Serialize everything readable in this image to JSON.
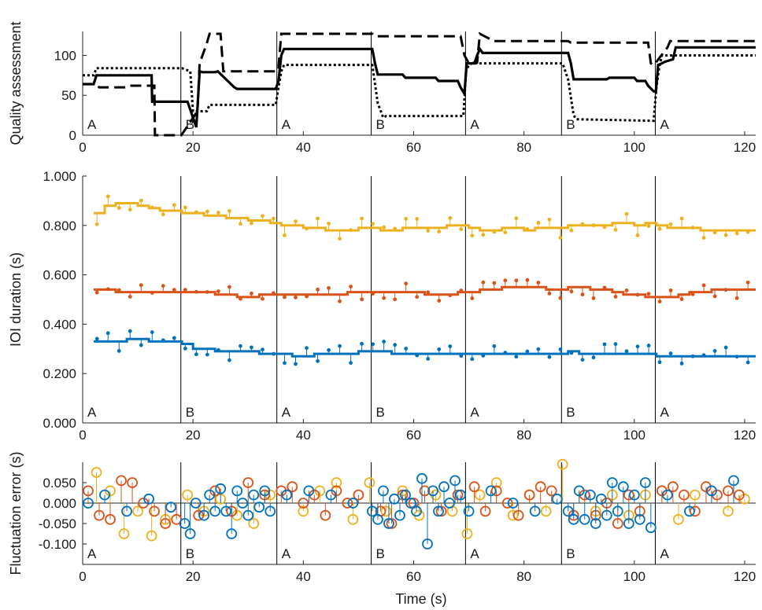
{
  "figure": {
    "xlabel": "Time (s)"
  },
  "chart_data": [
    {
      "type": "line",
      "ylabel": "Quality assessment",
      "xlim": [
        0,
        122
      ],
      "ylim": [
        0,
        130
      ],
      "xticks": [
        "0",
        "20",
        "40",
        "60",
        "80",
        "100",
        "120"
      ],
      "yticks": [
        "0",
        "50",
        "100"
      ],
      "ytick_values": [
        0,
        50,
        100
      ],
      "boundaries": [
        17.8,
        35.2,
        52.3,
        69.4,
        86.8,
        103.8
      ],
      "segment_labels": [
        "A",
        "B",
        "A",
        "B",
        "A",
        "B",
        "A"
      ],
      "series": [
        {
          "style": "solid",
          "color": "#000000",
          "x": [
            0,
            2,
            2.5,
            12.5,
            12.6,
            18,
            19,
            20.6,
            21.2,
            21.7,
            24,
            24.5,
            27.5,
            28,
            35,
            35.5,
            36,
            36.5,
            52.5,
            53,
            53.5,
            58,
            58.5,
            64,
            64.5,
            68,
            68.5,
            69.2,
            69.6,
            71,
            71.5,
            72,
            72.5,
            88,
            88.5,
            89,
            95,
            95.5,
            100,
            100.5,
            102,
            102.5,
            103.5,
            103.9,
            104.3,
            105,
            105.5,
            107,
            107.5,
            122
          ],
          "y": [
            64,
            64,
            75,
            75,
            42,
            42,
            42,
            10,
            80,
            79,
            79,
            80,
            60,
            58,
            58,
            68,
            100,
            108,
            108,
            90,
            76,
            76,
            72,
            72,
            68,
            68,
            60,
            52,
            90,
            90,
            100,
            108,
            103,
            103,
            90,
            70,
            70,
            72,
            72,
            68,
            68,
            62,
            55,
            55,
            88,
            90,
            92,
            95,
            110,
            110
          ]
        },
        {
          "style": "dashed",
          "color": "#000000",
          "x": [
            0,
            2.5,
            3,
            8,
            8.5,
            13,
            13.1,
            17.5,
            17.9,
            20.8,
            21.2,
            22.5,
            23,
            25,
            25.5,
            35,
            35.2,
            35.5,
            36,
            52.5,
            53,
            68.5,
            69.2,
            70,
            70.2,
            71.5,
            72,
            74,
            74.5,
            88,
            88.5,
            102.5,
            103,
            103.5,
            104,
            106,
            106.5,
            122
          ],
          "y": [
            64,
            64,
            60,
            60,
            62,
            62,
            0,
            0,
            0,
            30,
            90,
            115,
            127,
            127,
            80,
            80,
            85,
            85,
            127,
            127,
            124,
            124,
            100,
            90,
            91,
            91,
            127,
            120,
            118,
            118,
            116,
            116,
            90,
            88,
            92,
            110,
            118,
            118
          ]
        },
        {
          "style": "dotted",
          "color": "#000000",
          "x": [
            0,
            2,
            2.5,
            17.8,
            18,
            19.5,
            20,
            22.5,
            23,
            35,
            35.5,
            36,
            36.5,
            52.5,
            53.5,
            54.5,
            55,
            69,
            69.5,
            70,
            70.5,
            87,
            88,
            89,
            89.5,
            103.5,
            104,
            104.5,
            105,
            122
          ],
          "y": [
            75,
            75,
            84,
            84,
            84,
            80,
            30,
            30,
            38,
            38,
            60,
            80,
            88,
            88,
            40,
            22,
            24,
            24,
            80,
            88,
            90,
            90,
            70,
            25,
            20,
            18,
            60,
            85,
            100,
            100
          ]
        }
      ]
    },
    {
      "type": "line",
      "ylabel": "IOI duration (s)",
      "xlim": [
        0,
        122
      ],
      "ylim": [
        0,
        1
      ],
      "xticks": [
        "0",
        "20",
        "40",
        "60",
        "80",
        "100",
        "120"
      ],
      "yticks": [
        "0.000",
        "0.200",
        "0.400",
        "0.600",
        "0.800",
        "1.000"
      ],
      "ytick_values": [
        0,
        0.2,
        0.4,
        0.6,
        0.8,
        1.0
      ],
      "boundaries": [
        17.8,
        35.2,
        52.3,
        69.4,
        86.8,
        103.8
      ],
      "segment_labels": [
        "A",
        "B",
        "A",
        "B",
        "A",
        "B",
        "A"
      ],
      "series": [
        {
          "color": "#EDB120",
          "base": 0.8,
          "noise": 0.045,
          "x": [
            2,
            4,
            6,
            8,
            10,
            12,
            14,
            16,
            18,
            20,
            22,
            24,
            26,
            28,
            30,
            32,
            34,
            36,
            38,
            40,
            42,
            44,
            46,
            48,
            50,
            52,
            54,
            56,
            58,
            60,
            62,
            64,
            66,
            68,
            70,
            72,
            74,
            76,
            78,
            80,
            82,
            84,
            86,
            88,
            90,
            92,
            94,
            96,
            98,
            100,
            102,
            104,
            106,
            108,
            110,
            112,
            114,
            116,
            118,
            120
          ],
          "y": [
            0.85,
            0.88,
            0.89,
            0.89,
            0.88,
            0.87,
            0.86,
            0.86,
            0.85,
            0.85,
            0.84,
            0.84,
            0.83,
            0.83,
            0.82,
            0.82,
            0.81,
            0.8,
            0.8,
            0.79,
            0.79,
            0.78,
            0.78,
            0.78,
            0.79,
            0.79,
            0.78,
            0.78,
            0.79,
            0.79,
            0.79,
            0.79,
            0.8,
            0.8,
            0.79,
            0.78,
            0.78,
            0.79,
            0.79,
            0.78,
            0.79,
            0.79,
            0.79,
            0.8,
            0.8,
            0.8,
            0.8,
            0.81,
            0.81,
            0.8,
            0.81,
            0.8,
            0.79,
            0.79,
            0.79,
            0.78,
            0.78,
            0.78,
            0.78,
            0.78
          ]
        },
        {
          "color": "#D95319",
          "base": 0.53,
          "noise": 0.035,
          "x": [
            2,
            4,
            6,
            8,
            10,
            12,
            14,
            16,
            18,
            20,
            22,
            24,
            26,
            28,
            30,
            32,
            34,
            36,
            38,
            40,
            42,
            44,
            46,
            48,
            50,
            52,
            54,
            56,
            58,
            60,
            62,
            64,
            66,
            68,
            70,
            72,
            74,
            76,
            78,
            80,
            82,
            84,
            86,
            88,
            90,
            92,
            94,
            96,
            98,
            100,
            102,
            104,
            106,
            108,
            110,
            112,
            114,
            116,
            118,
            120
          ],
          "y": [
            0.54,
            0.54,
            0.53,
            0.53,
            0.53,
            0.53,
            0.53,
            0.53,
            0.53,
            0.53,
            0.53,
            0.52,
            0.52,
            0.51,
            0.51,
            0.52,
            0.52,
            0.52,
            0.52,
            0.52,
            0.52,
            0.52,
            0.52,
            0.53,
            0.53,
            0.53,
            0.53,
            0.53,
            0.53,
            0.53,
            0.52,
            0.52,
            0.52,
            0.53,
            0.53,
            0.54,
            0.54,
            0.55,
            0.55,
            0.55,
            0.55,
            0.54,
            0.54,
            0.55,
            0.55,
            0.54,
            0.54,
            0.53,
            0.52,
            0.52,
            0.51,
            0.51,
            0.51,
            0.52,
            0.53,
            0.53,
            0.54,
            0.54,
            0.54,
            0.54
          ]
        },
        {
          "color": "#0072BD",
          "base": 0.29,
          "noise": 0.04,
          "x": [
            2,
            4,
            6,
            8,
            10,
            12,
            14,
            16,
            18,
            20,
            22,
            24,
            26,
            28,
            30,
            32,
            34,
            36,
            38,
            40,
            42,
            44,
            46,
            48,
            50,
            52,
            54,
            56,
            58,
            60,
            62,
            64,
            66,
            68,
            70,
            72,
            74,
            76,
            78,
            80,
            82,
            84,
            86,
            88,
            90,
            92,
            94,
            96,
            98,
            100,
            102,
            104,
            106,
            108,
            110,
            112,
            114,
            116,
            118,
            120
          ],
          "y": [
            0.33,
            0.33,
            0.33,
            0.34,
            0.34,
            0.33,
            0.33,
            0.33,
            0.32,
            0.3,
            0.3,
            0.29,
            0.29,
            0.29,
            0.29,
            0.28,
            0.28,
            0.28,
            0.27,
            0.27,
            0.28,
            0.28,
            0.28,
            0.28,
            0.29,
            0.29,
            0.29,
            0.28,
            0.28,
            0.28,
            0.28,
            0.28,
            0.28,
            0.28,
            0.28,
            0.28,
            0.28,
            0.28,
            0.28,
            0.28,
            0.28,
            0.28,
            0.28,
            0.29,
            0.28,
            0.28,
            0.28,
            0.28,
            0.28,
            0.28,
            0.28,
            0.27,
            0.27,
            0.27,
            0.27,
            0.27,
            0.27,
            0.27,
            0.27,
            0.27
          ]
        }
      ]
    },
    {
      "type": "scatter",
      "ylabel": "Fluctuation error (s)",
      "xlim": [
        0,
        122
      ],
      "ylim": [
        -0.15,
        0.1
      ],
      "xticks": [
        "0",
        "20",
        "40",
        "60",
        "80",
        "100",
        "120"
      ],
      "yticks": [
        "-0.100",
        "-0.050",
        "0.000",
        "0.050"
      ],
      "ytick_values": [
        -0.1,
        -0.05,
        0,
        0.05
      ],
      "boundaries": [
        17.8,
        35.2,
        52.3,
        69.4,
        86.8,
        103.8
      ],
      "segment_labels": [
        "A",
        "B",
        "A",
        "B",
        "A",
        "B",
        "A"
      ],
      "series": [
        {
          "color": "#EDB120",
          "x": [
            2.5,
            5,
            7.5,
            10,
            12.5,
            15,
            19,
            22,
            25,
            28,
            31,
            34,
            37,
            40,
            43,
            46,
            49,
            52,
            55,
            58,
            61,
            64,
            67,
            69.7,
            72,
            75,
            78,
            81,
            84,
            87,
            90,
            93,
            96,
            99,
            102,
            105,
            108,
            111,
            114,
            117,
            120
          ],
          "y": [
            0.075,
            0.03,
            -0.075,
            -0.02,
            -0.08,
            -0.04,
            0.02,
            -0.02,
            0.01,
            -0.03,
            -0.05,
            0.02,
            0.02,
            -0.02,
            0.03,
            0.05,
            -0.04,
            0.05,
            -0.02,
            0.03,
            -0.03,
            0.02,
            -0.02,
            -0.075,
            0.02,
            0.05,
            -0.03,
            0.02,
            -0.02,
            0.095,
            0.03,
            -0.02,
            0.02,
            -0.03,
            0.02,
            0.03,
            -0.04,
            0.02,
            0.03,
            -0.02,
            0.01
          ]
        },
        {
          "color": "#D95319",
          "x": [
            1,
            3,
            5,
            7,
            9,
            11,
            13,
            15,
            17,
            21,
            24,
            27,
            30,
            33,
            36,
            38,
            40,
            42,
            44,
            46,
            48,
            50,
            54,
            56,
            58,
            60,
            62,
            65,
            68,
            71,
            73,
            75,
            77,
            79,
            81,
            83,
            85,
            89,
            91,
            93,
            95,
            97,
            99,
            101,
            105,
            107,
            109,
            111,
            113,
            115,
            117,
            119
          ],
          "y": [
            0.03,
            -0.03,
            -0.04,
            0.055,
            0.05,
            0.0,
            -0.02,
            -0.05,
            -0.04,
            -0.03,
            0.03,
            -0.02,
            0.05,
            0.02,
            0.03,
            0.04,
            0.0,
            0.02,
            -0.03,
            0.03,
            0.0,
            0.02,
            -0.02,
            -0.05,
            0.02,
            0.0,
            0.03,
            -0.02,
            0.02,
            0.04,
            -0.02,
            0.03,
            0.0,
            -0.03,
            0.02,
            0.04,
            0.03,
            -0.03,
            0.02,
            -0.03,
            0.0,
            -0.05,
            0.02,
            -0.02,
            0.03,
            0.04,
            0.02,
            -0.02,
            0.04,
            0.02,
            0.03,
            0.02
          ]
        },
        {
          "color": "#0072BD",
          "x": [
            1,
            4,
            8,
            12,
            16,
            18.5,
            19.5,
            20.5,
            22,
            23,
            24,
            25,
            26,
            27,
            28,
            29,
            30,
            31,
            32,
            33,
            34,
            37,
            41,
            45,
            49,
            52.5,
            53.5,
            54.5,
            55.5,
            56.5,
            57.5,
            58.5,
            59.5,
            60.5,
            61.5,
            62.5,
            63.5,
            64.5,
            65.5,
            66.5,
            67.5,
            68.5,
            70,
            74,
            78,
            82,
            86,
            88,
            89,
            90,
            91,
            92,
            93,
            94,
            95,
            96,
            97,
            98,
            99,
            100,
            101,
            102,
            103,
            106,
            110,
            114,
            118
          ],
          "y": [
            0.0,
            0.02,
            -0.02,
            0.01,
            -0.01,
            -0.05,
            -0.075,
            0.0,
            -0.03,
            0.02,
            -0.02,
            0.035,
            -0.02,
            -0.075,
            0.03,
            0.0,
            -0.03,
            0.02,
            -0.01,
            0.03,
            -0.02,
            0.02,
            0.03,
            0.02,
            0.0,
            -0.02,
            -0.04,
            0.03,
            -0.05,
            0.01,
            -0.03,
            0.02,
            0.0,
            -0.02,
            0.06,
            -0.1,
            0.03,
            -0.02,
            0.04,
            0.0,
            0.055,
            0.02,
            -0.02,
            0.03,
            0.0,
            -0.02,
            0.01,
            -0.02,
            -0.04,
            0.03,
            -0.04,
            0.02,
            -0.05,
            0.01,
            -0.03,
            0.05,
            -0.02,
            0.04,
            -0.05,
            0.02,
            -0.04,
            0.05,
            -0.06,
            0.02,
            -0.02,
            0.03,
            0.055
          ]
        }
      ]
    }
  ]
}
